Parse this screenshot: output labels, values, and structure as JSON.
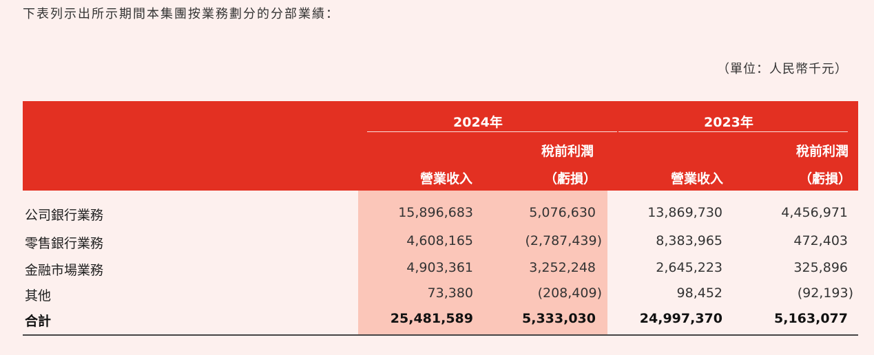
{
  "intro": "下表列示出所示期間本集團按業務劃分的分部業績：",
  "unit": "（單位：人民幣千元）",
  "header": {
    "year_2024": "2024年",
    "year_2023": "2023年",
    "revenue": "營業收入",
    "profit_line1": "稅前利潤",
    "profit_line2": "（虧損）"
  },
  "rows": [
    {
      "label": "公司銀行業務",
      "rev_2024": "15,896,683",
      "profit_2024": "5,076,630",
      "rev_2023": "13,869,730",
      "profit_2023": "4,456,971"
    },
    {
      "label": "零售銀行業務",
      "rev_2024": "4,608,165",
      "profit_2024": "(2,787,439)",
      "rev_2023": "8,383,965",
      "profit_2023": "472,403"
    },
    {
      "label": "金融市場業務",
      "rev_2024": "4,903,361",
      "profit_2024": "3,252,248",
      "rev_2023": "2,645,223",
      "profit_2023": "325,896"
    },
    {
      "label": "其他",
      "rev_2024": "73,380",
      "profit_2024": "(208,409)",
      "rev_2023": "98,452",
      "profit_2023": "(92,193)"
    },
    {
      "label": "合計",
      "rev_2024": "25,481,589",
      "profit_2024": "5,333,030",
      "rev_2023": "24,997,370",
      "profit_2023": "5,163,077"
    }
  ],
  "colors": {
    "header_red": "#e33022",
    "shade_2024": "#fbc6b9",
    "page_bg": "#fdf0ee"
  }
}
